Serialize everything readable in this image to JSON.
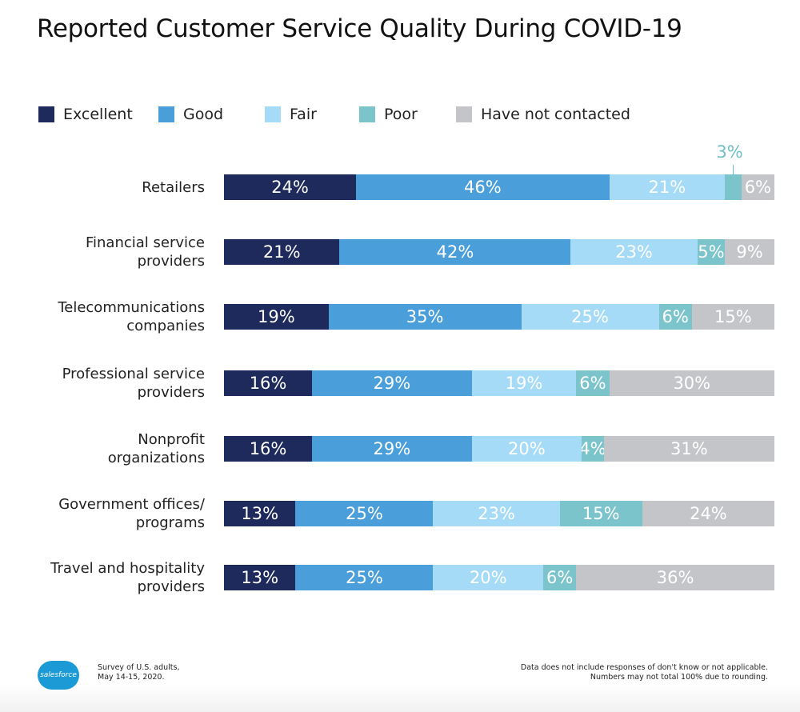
{
  "chart_data": {
    "type": "bar",
    "orientation": "horizontal",
    "stacked": true,
    "title": "Reported Customer Service Quality During COVID-19",
    "categories": [
      "Retailers",
      "Financial service providers",
      "Telecommunications companies",
      "Professional service providers",
      "Nonprofit organizations",
      "Government offices/ programs",
      "Travel and hospitality providers"
    ],
    "category_lines": [
      [
        "Retailers"
      ],
      [
        "Financial service",
        "providers"
      ],
      [
        "Telecommunications",
        "companies"
      ],
      [
        "Professional service",
        "providers"
      ],
      [
        "Nonprofit",
        "organizations"
      ],
      [
        "Government offices/",
        "programs"
      ],
      [
        "Travel and hospitality",
        "providers"
      ]
    ],
    "series": [
      {
        "name": "Excellent",
        "color": "#1f2a5c",
        "values": [
          24,
          21,
          19,
          16,
          16,
          13,
          13
        ]
      },
      {
        "name": "Good",
        "color": "#4a9fdb",
        "values": [
          46,
          42,
          35,
          29,
          29,
          25,
          25
        ]
      },
      {
        "name": "Fair",
        "color": "#a6dbf8",
        "values": [
          21,
          23,
          25,
          19,
          20,
          23,
          20
        ]
      },
      {
        "name": "Poor",
        "color": "#7cc4cc",
        "values": [
          3,
          5,
          6,
          6,
          4,
          15,
          6
        ]
      },
      {
        "name": "Have not contacted",
        "color": "#c4c5c8",
        "values": [
          6,
          9,
          15,
          30,
          31,
          24,
          36
        ]
      }
    ],
    "value_suffix": "%",
    "xlim": [
      0,
      100
    ],
    "legend_position": "top-left",
    "grid": false
  },
  "footer": {
    "logo": "salesforce",
    "source_lines": [
      "Survey of U.S. adults,",
      "May 14-15, 2020."
    ],
    "note_lines": [
      "Data does not include responses of don't know or not applicable.",
      "Numbers may not total 100% due to rounding."
    ]
  }
}
